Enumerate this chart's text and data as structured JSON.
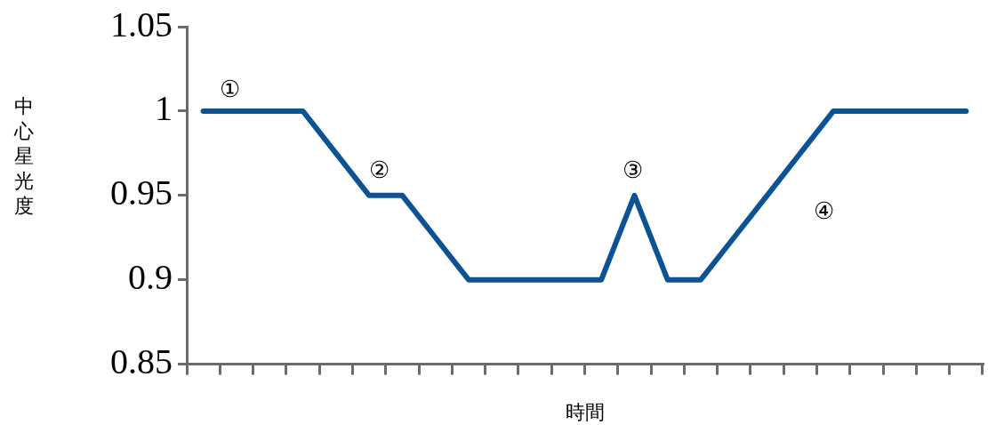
{
  "chart_data": {
    "type": "line",
    "ylabel": "中心星光度",
    "xlabel": "時間",
    "categories": [
      null,
      null,
      null,
      null,
      null,
      null,
      null,
      null,
      null,
      null,
      null,
      null,
      null,
      null,
      null,
      null,
      null,
      null,
      null,
      null,
      null,
      null,
      null,
      null
    ],
    "series": [
      {
        "color": "#0b5394",
        "values": [
          1,
          1,
          1,
          1,
          0.975,
          0.95,
          0.95,
          0.925,
          0.9,
          0.9,
          0.9,
          0.9,
          0.9,
          0.95,
          0.9,
          0.9,
          0.925,
          0.95,
          0.975,
          1,
          1,
          1,
          1,
          1
        ]
      }
    ],
    "ylim": [
      0.85,
      1.05
    ],
    "yticks": [
      0.85,
      0.9,
      0.95,
      1,
      1.05
    ],
    "grid": false,
    "legend": false,
    "marker": "none",
    "line_style": "solid",
    "annotations": [
      "①",
      "②",
      "③",
      "④"
    ]
  }
}
